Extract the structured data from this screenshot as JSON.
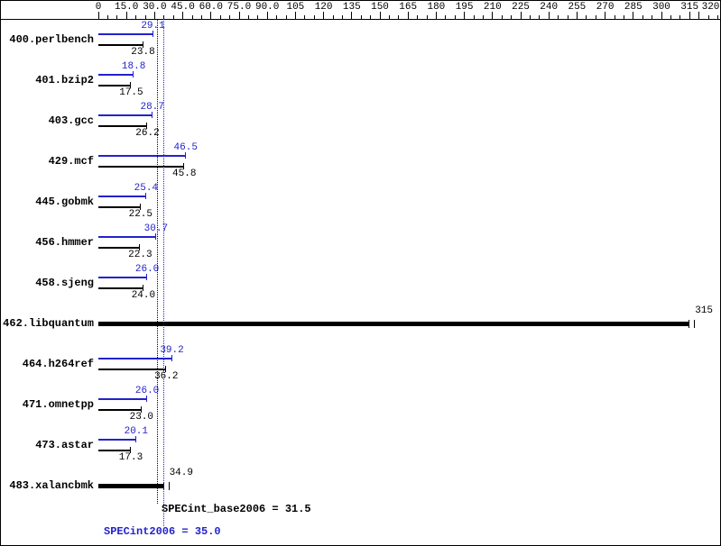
{
  "chart_data": {
    "type": "bar",
    "orientation": "horizontal",
    "title": "",
    "axis": {
      "min": 0,
      "max": 320,
      "minor_step": 5,
      "major_step": 15,
      "tick_labels": [
        "0",
        "15.0",
        "30.0",
        "45.0",
        "60.0",
        "75.0",
        "90.0",
        "105",
        "120",
        "135",
        "150",
        "165",
        "180",
        "195",
        "210",
        "225",
        "240",
        "255",
        "270",
        "285",
        "300",
        "315",
        "320"
      ]
    },
    "benchmarks": [
      {
        "name": "400.perlbench",
        "peak": 29.1,
        "base": 23.8
      },
      {
        "name": "401.bzip2",
        "peak": 18.8,
        "base": 17.5
      },
      {
        "name": "403.gcc",
        "peak": 28.7,
        "base": 26.2
      },
      {
        "name": "429.mcf",
        "peak": 46.5,
        "base": 45.8
      },
      {
        "name": "445.gobmk",
        "peak": 25.4,
        "base": 22.5
      },
      {
        "name": "456.hmmer",
        "peak": 30.7,
        "base": 22.3
      },
      {
        "name": "458.sjeng",
        "peak": 26.0,
        "base": 24.0
      },
      {
        "name": "462.libquantum",
        "single": 315
      },
      {
        "name": "464.h264ref",
        "peak": 39.2,
        "base": 36.2
      },
      {
        "name": "471.omnetpp",
        "peak": 26.0,
        "base": 23.0
      },
      {
        "name": "473.astar",
        "peak": 20.1,
        "base": 17.3
      },
      {
        "name": "483.xalancbmk",
        "single": 34.9
      }
    ],
    "summary": {
      "base_label": "SPECint_base2006 = 31.5",
      "base_value": 31.5,
      "peak_label": "SPECint2006 = 35.0",
      "peak_value": 35.0
    },
    "colors": {
      "peak": "#2222cc",
      "base": "#000000"
    }
  }
}
